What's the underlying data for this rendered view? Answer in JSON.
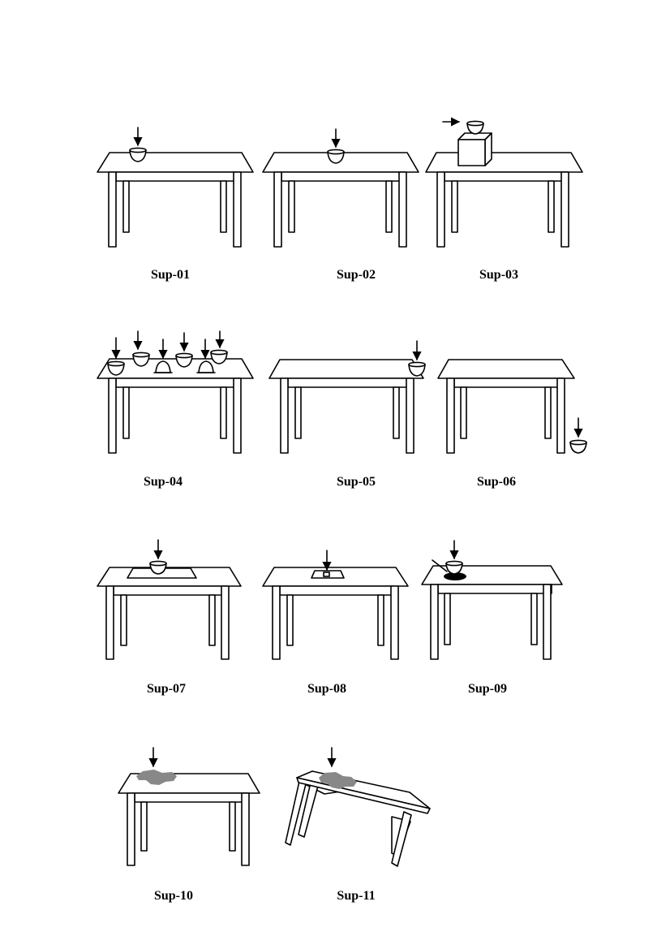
{
  "figure": {
    "panels": [
      {
        "id": "sup-01",
        "caption": "Sup-01",
        "object": "bowl",
        "support": "table-top",
        "scene": "bowl-on-table-center"
      },
      {
        "id": "sup-02",
        "caption": "Sup-02",
        "object": "bowl",
        "support": "table-top",
        "scene": "bowl-on-table"
      },
      {
        "id": "sup-03",
        "caption": "Sup-03",
        "object": "bowl",
        "support": "box-on-table",
        "scene": "bowl-moved-onto-box"
      },
      {
        "id": "sup-04",
        "caption": "Sup-04",
        "object": "bowls",
        "support": "table-top",
        "scene": "many-bowls-on-table"
      },
      {
        "id": "sup-05",
        "caption": "Sup-05",
        "object": "bowl",
        "support": "table-edge",
        "scene": "bowl-at-table-edge"
      },
      {
        "id": "sup-06",
        "caption": "Sup-06",
        "object": "bowl",
        "support": "floor",
        "scene": "bowl-beside-table"
      },
      {
        "id": "sup-07",
        "caption": "Sup-07",
        "object": "bowl",
        "support": "large-mat",
        "scene": "bowl-on-large-mat"
      },
      {
        "id": "sup-08",
        "caption": "Sup-08",
        "object": "bowl",
        "support": "small-mat",
        "scene": "bowl-on-small-mat"
      },
      {
        "id": "sup-09",
        "caption": "Sup-09",
        "object": "bowl",
        "support": "dark-puddle",
        "scene": "bowl-on-dark-patch"
      },
      {
        "id": "sup-10",
        "caption": "Sup-10",
        "object": "spill",
        "support": "table-top",
        "scene": "grey-stain-on-table"
      },
      {
        "id": "sup-11",
        "caption": "Sup-11",
        "object": "spill",
        "support": "tilted-table",
        "scene": "grey-stain-on-tilted-table"
      }
    ],
    "colors": {
      "ink": "#000000",
      "stain": "#888888",
      "background": "#ffffff"
    },
    "icons": [
      "down-arrow-icon",
      "right-arrow-icon",
      "bowl-icon",
      "table-icon",
      "box-icon"
    ]
  }
}
